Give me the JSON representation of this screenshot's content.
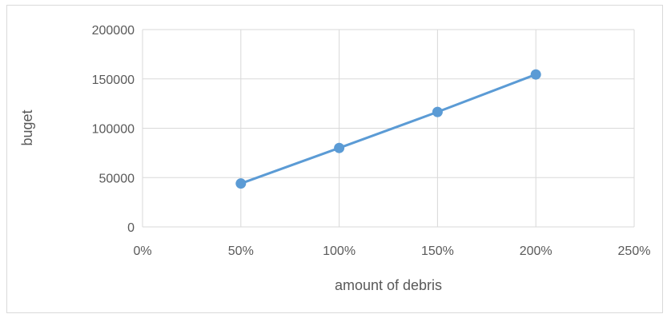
{
  "chart_data": {
    "type": "scatter",
    "xlabel": "amount of debris",
    "ylabel": "buget",
    "xlim": [
      0,
      2.5
    ],
    "ylim": [
      0,
      200000
    ],
    "x_ticks": [
      "0%",
      "50%",
      "100%",
      "150%",
      "200%",
      "250%"
    ],
    "y_ticks": [
      "200000",
      "150000",
      "100000",
      "50000",
      "0"
    ],
    "grid": true,
    "legend": "none",
    "series": [
      {
        "x": [
          0.5,
          1.0,
          1.5,
          2.0
        ],
        "values": [
          44000,
          80000,
          116500,
          154500
        ],
        "color": "#5b9bd5"
      }
    ]
  }
}
